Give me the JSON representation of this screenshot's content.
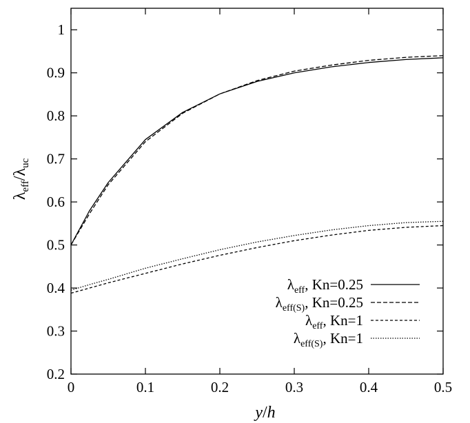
{
  "chart_data": {
    "type": "line",
    "xlabel": {
      "main": "y",
      "sep": "/",
      "sub": "h"
    },
    "ylabel": {
      "lambda": "λ",
      "num_sub": "eff",
      "sep": "/",
      "lambda2": "λ",
      "den_sub": "uc"
    },
    "xlim": [
      0,
      0.5
    ],
    "ylim": [
      0.2,
      1.05
    ],
    "x_ticks": [
      0,
      0.1,
      0.2,
      0.3,
      0.4,
      0.5
    ],
    "x_tick_labels": [
      "0",
      "0.1",
      "0.2",
      "0.3",
      "0.4",
      "0.5"
    ],
    "y_ticks": [
      0.2,
      0.3,
      0.4,
      0.5,
      0.6,
      0.7,
      0.8,
      0.9,
      1.0
    ],
    "y_tick_labels": [
      "0.2",
      "0.3",
      "0.4",
      "0.5",
      "0.6",
      "0.7",
      "0.8",
      "0.9",
      "1"
    ],
    "grid": false,
    "legend_position": "bottom-right",
    "x": [
      0,
      0.025,
      0.05,
      0.1,
      0.15,
      0.2,
      0.25,
      0.3,
      0.35,
      0.4,
      0.45,
      0.5
    ],
    "series": [
      {
        "legend_symbol": "λ",
        "legend_sub": "eff",
        "legend_rest": ", Kn=0.25",
        "style": "solid",
        "values": [
          0.5,
          0.58,
          0.645,
          0.745,
          0.808,
          0.851,
          0.88,
          0.9,
          0.914,
          0.924,
          0.931,
          0.935
        ]
      },
      {
        "legend_symbol": "λ",
        "legend_sub": "eff(S)",
        "legend_rest": ", Kn=0.25",
        "style": "dashed",
        "values": [
          0.5,
          0.573,
          0.64,
          0.74,
          0.806,
          0.851,
          0.882,
          0.904,
          0.918,
          0.929,
          0.936,
          0.94
        ]
      },
      {
        "legend_symbol": "λ",
        "legend_sub": "eff",
        "legend_rest": ", Kn=1",
        "style": "short-dashed",
        "values": [
          0.388,
          0.4,
          0.412,
          0.434,
          0.456,
          0.476,
          0.494,
          0.51,
          0.523,
          0.534,
          0.541,
          0.545
        ]
      },
      {
        "legend_symbol": "λ",
        "legend_sub": "eff(S)",
        "legend_rest": ", Kn=1",
        "style": "dotted",
        "values": [
          0.395,
          0.408,
          0.42,
          0.446,
          0.468,
          0.489,
          0.507,
          0.522,
          0.535,
          0.545,
          0.552,
          0.555
        ]
      }
    ]
  }
}
